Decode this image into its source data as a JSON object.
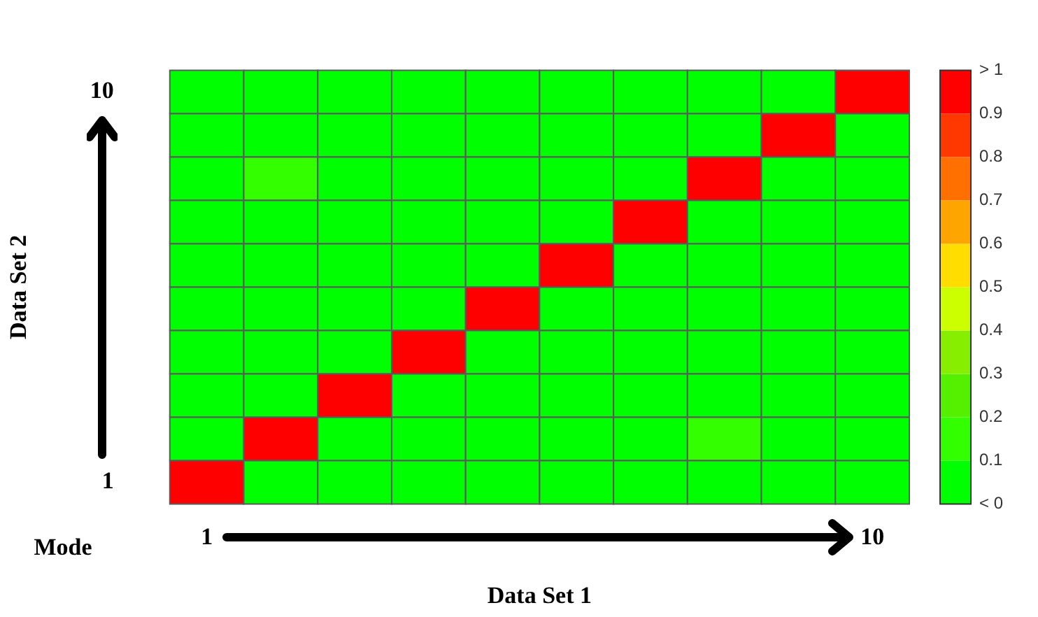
{
  "chart_data": {
    "type": "heatmap",
    "xlabel": "Data Set 1",
    "ylabel": "Data Set 2",
    "categories": [
      "1",
      null,
      null,
      null,
      null,
      null,
      null,
      null,
      null,
      "10"
    ],
    "y_categories": [
      "10",
      null,
      null,
      null,
      null,
      null,
      null,
      null,
      null,
      "1"
    ],
    "cells": [
      [
        0.05,
        0.05,
        0.05,
        0.05,
        0.05,
        0.05,
        0.05,
        0.05,
        0.05,
        1
      ],
      [
        0.05,
        0.05,
        0.05,
        0.05,
        0.05,
        0.05,
        0.05,
        0.05,
        1,
        0.05
      ],
      [
        0.05,
        0.15,
        0.05,
        0.05,
        0.05,
        0.05,
        0.05,
        1,
        0.05,
        0.05
      ],
      [
        0.05,
        0.05,
        0.05,
        0.05,
        0.05,
        0.05,
        1,
        0.05,
        0.05,
        0.05
      ],
      [
        0.05,
        0.05,
        0.05,
        0.05,
        0.05,
        1,
        0.05,
        0.05,
        0.05,
        0.05
      ],
      [
        0.05,
        0.05,
        0.05,
        0.05,
        1,
        0.05,
        0.05,
        0.05,
        0.05,
        0.05
      ],
      [
        0.05,
        0.05,
        0.05,
        1,
        0.05,
        0.05,
        0.05,
        0.05,
        0.05,
        0.05
      ],
      [
        0.05,
        0.05,
        1,
        0.05,
        0.05,
        0.05,
        0.05,
        0.05,
        0.05,
        0.05
      ],
      [
        0.05,
        1,
        0.05,
        0.05,
        0.05,
        0.05,
        0.05,
        0.15,
        0.05,
        0.05
      ],
      [
        1,
        0.05,
        0.05,
        0.05,
        0.05,
        0.05,
        0.05,
        0.05,
        0.05,
        0.05
      ]
    ],
    "clim": [
      0,
      1
    ],
    "cticks": [
      {
        "value": 0,
        "label": "< 0"
      },
      0.1,
      0.2,
      0.3,
      0.4,
      0.5,
      0.6,
      0.7,
      0.8,
      0.9,
      {
        "value": 1,
        "label": "> 1"
      }
    ],
    "annotations": [
      "Mode"
    ]
  }
}
